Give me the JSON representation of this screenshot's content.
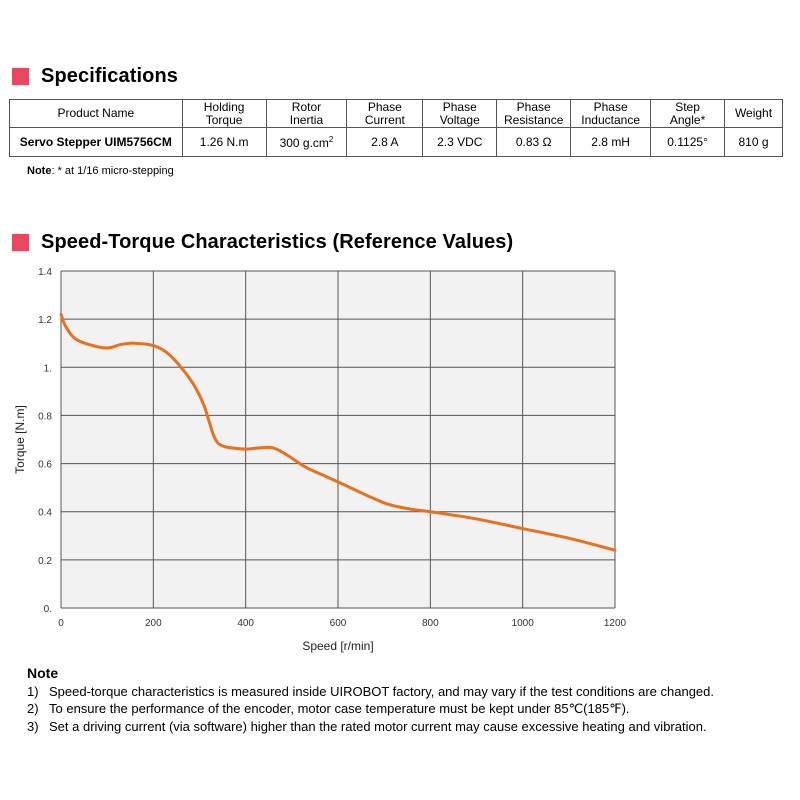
{
  "specifications": {
    "title": "Specifications",
    "headers": [
      "Product Name",
      "Holding\nTorque",
      "Rotor\nInertia",
      "Phase\nCurrent",
      "Phase\nVoltage",
      "Phase\nResistance",
      "Phase\nInductance",
      "Step\nAngle*",
      "Weight"
    ],
    "row": {
      "product_name": "Servo Stepper UIM5756CM",
      "holding_torque": "1.26 N.m",
      "rotor_inertia": "300 g.cm",
      "rotor_inertia_sup": "2",
      "phase_current": "2.8 A",
      "phase_voltage": "2.3 VDC",
      "phase_resistance": "0.83 Ω",
      "phase_inductance": "2.8 mH",
      "step_angle": "0.1125°",
      "weight": "810 g"
    },
    "note_label": "Note",
    "note_text": ": * at 1/16 micro-stepping"
  },
  "speed_torque": {
    "title": "Speed-Torque Characteristics (Reference Values)"
  },
  "chart_data": {
    "type": "line",
    "title": "Speed-Torque Characteristics (Reference Values)",
    "xlabel": "Speed [r/min]",
    "ylabel": "Torque [N.m]",
    "xlim": [
      0,
      1200
    ],
    "ylim": [
      0,
      1.4
    ],
    "grid": true,
    "x_ticks": [
      0,
      200,
      400,
      600,
      800,
      1000,
      1200
    ],
    "x_tick_labels": [
      "0",
      "200",
      "400",
      "600",
      "800",
      "1000",
      "1200"
    ],
    "y_ticks": [
      0,
      0.2,
      0.4,
      0.6,
      0.8,
      1.0,
      1.2,
      1.4
    ],
    "y_tick_labels": [
      "0.",
      "0.2",
      "0.4",
      "0.6",
      "0.8",
      "1.",
      "1.2",
      "1.4"
    ],
    "line_color": "#e8701f",
    "series": [
      {
        "name": "Torque",
        "x": [
          0,
          10,
          30,
          60,
          100,
          130,
          160,
          200,
          230,
          260,
          290,
          310,
          320,
          330,
          340,
          355,
          370,
          400,
          430,
          460,
          490,
          530,
          570,
          610,
          660,
          710,
          760,
          800,
          900,
          1000,
          1100,
          1200
        ],
        "y": [
          1.22,
          1.17,
          1.12,
          1.095,
          1.08,
          1.095,
          1.1,
          1.09,
          1.06,
          1.0,
          0.92,
          0.84,
          0.78,
          0.72,
          0.685,
          0.67,
          0.665,
          0.66,
          0.665,
          0.665,
          0.635,
          0.585,
          0.55,
          0.515,
          0.47,
          0.43,
          0.41,
          0.4,
          0.37,
          0.33,
          0.29,
          0.24
        ]
      }
    ]
  },
  "notes": {
    "heading": "Note",
    "items": [
      {
        "num": "1)",
        "text": "Speed-torque characteristics is measured inside UIROBOT factory, and may vary if the test conditions are changed."
      },
      {
        "num": "2)",
        "text": "To ensure the performance of the encoder, motor case temperature must be kept under 85℃(185℉)."
      },
      {
        "num": "3)",
        "text": "Set a driving current (via software) higher than the rated motor current may cause excessive heating and vibration."
      }
    ]
  }
}
